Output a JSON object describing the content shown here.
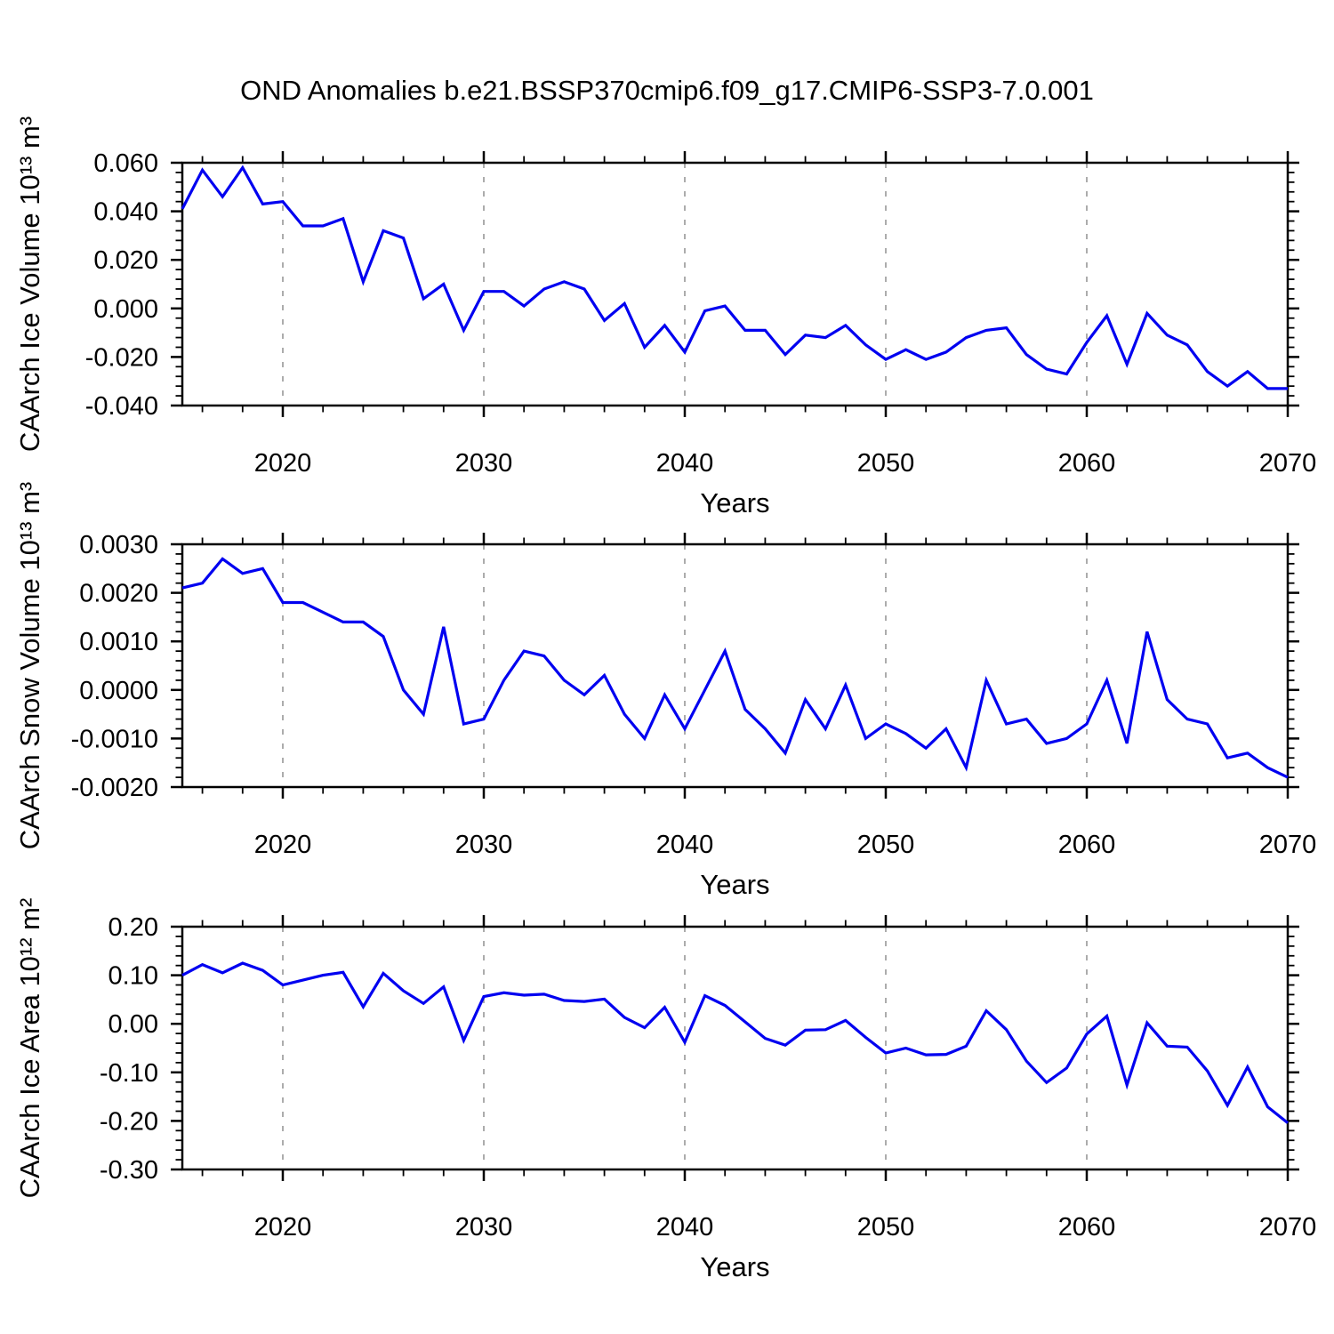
{
  "title": "OND Anomalies b.e21.BSSP370cmip6.f09_g17.CMIP6-SSP3-7.0.001",
  "colors": {
    "line": "#0000f0",
    "grid": "#909090",
    "frame": "#000000",
    "text": "#000000"
  },
  "chart_data": [
    {
      "type": "line",
      "name": "CAArch Ice Volume anomalies",
      "ylabel": "CAArch Ice Volume 10¹³ m³",
      "xlabel": "Years",
      "x_start": 2015,
      "x_end": 2070,
      "ylim": [
        -0.04,
        0.06
      ],
      "grid": "vertical-dashed-at-decades",
      "legend": "none",
      "yticks": {
        "values": [
          0.06,
          0.04,
          0.02,
          0.0,
          -0.02,
          -0.04
        ],
        "labels": [
          "0.060",
          "0.040",
          "0.020",
          "0.000",
          "-0.020",
          "-0.040"
        ]
      },
      "xticks": {
        "values": [
          2020,
          2030,
          2040,
          2050,
          2060,
          2070
        ],
        "labels": [
          "2020",
          "2030",
          "2040",
          "2050",
          "2060",
          "2070"
        ]
      },
      "values": [
        0.041,
        0.057,
        0.046,
        0.058,
        0.043,
        0.044,
        0.034,
        0.034,
        0.037,
        0.011,
        0.032,
        0.029,
        0.004,
        0.01,
        -0.009,
        0.007,
        0.007,
        0.001,
        0.008,
        0.011,
        0.008,
        -0.005,
        0.002,
        -0.016,
        -0.007,
        -0.018,
        -0.001,
        0.001,
        -0.009,
        -0.009,
        -0.019,
        -0.011,
        -0.012,
        -0.007,
        -0.015,
        -0.021,
        -0.017,
        -0.021,
        -0.018,
        -0.012,
        -0.009,
        -0.008,
        -0.019,
        -0.025,
        -0.027,
        -0.014,
        -0.003,
        -0.023,
        -0.002,
        -0.011,
        -0.015,
        -0.026,
        -0.032,
        -0.026,
        -0.033,
        -0.033
      ]
    },
    {
      "type": "line",
      "name": "CAArch Snow Volume anomalies",
      "ylabel": "CAArch Snow Volume 10¹³ m³",
      "xlabel": "Years",
      "x_start": 2015,
      "x_end": 2070,
      "ylim": [
        -0.002,
        0.003
      ],
      "grid": "vertical-dashed-at-decades",
      "legend": "none",
      "yticks": {
        "values": [
          0.003,
          0.002,
          0.001,
          0.0,
          -0.001,
          -0.002
        ],
        "labels": [
          "0.0030",
          "0.0020",
          "0.0010",
          "0.0000",
          "-0.0010",
          "-0.0020"
        ]
      },
      "xticks": {
        "values": [
          2020,
          2030,
          2040,
          2050,
          2060,
          2070
        ],
        "labels": [
          "2020",
          "2030",
          "2040",
          "2050",
          "2060",
          "2070"
        ]
      },
      "values": [
        0.0021,
        0.0022,
        0.0027,
        0.0024,
        0.0025,
        0.0018,
        0.0018,
        0.0016,
        0.0014,
        0.0014,
        0.0011,
        0.0,
        -0.0005,
        0.0013,
        -0.0007,
        -0.0006,
        0.0002,
        0.0008,
        0.0007,
        0.0002,
        -0.0001,
        0.0003,
        -0.0005,
        -0.001,
        -0.0001,
        -0.0008,
        0.0,
        0.0008,
        -0.0004,
        -0.0008,
        -0.0013,
        -0.0002,
        -0.0008,
        0.0001,
        -0.001,
        -0.0007,
        -0.0009,
        -0.0012,
        -0.0008,
        -0.0016,
        0.0002,
        -0.0007,
        -0.0006,
        -0.0011,
        -0.001,
        -0.0007,
        0.0002,
        -0.0011,
        0.0012,
        -0.0002,
        -0.0006,
        -0.0007,
        -0.0014,
        -0.0013,
        -0.0016,
        -0.0018
      ]
    },
    {
      "type": "line",
      "name": "CAArch Ice Area anomalies",
      "ylabel": "CAArch Ice Area 10¹² m²",
      "xlabel": "Years",
      "x_start": 2015,
      "x_end": 2070,
      "ylim": [
        -0.3,
        0.2
      ],
      "grid": "vertical-dashed-at-decades",
      "legend": "none",
      "yticks": {
        "values": [
          0.2,
          0.1,
          0.0,
          -0.1,
          -0.2,
          -0.3
        ],
        "labels": [
          "0.20",
          "0.10",
          "0.00",
          "-0.10",
          "-0.20",
          "-0.30"
        ]
      },
      "xticks": {
        "values": [
          2020,
          2030,
          2040,
          2050,
          2060,
          2070
        ],
        "labels": [
          "2020",
          "2030",
          "2040",
          "2050",
          "2060",
          "2070"
        ]
      },
      "values": [
        0.1,
        0.122,
        0.105,
        0.125,
        0.11,
        0.08,
        0.09,
        0.1,
        0.106,
        0.035,
        0.104,
        0.068,
        0.042,
        0.076,
        -0.034,
        0.056,
        0.064,
        0.059,
        0.061,
        0.048,
        0.046,
        0.051,
        0.013,
        -0.008,
        0.034,
        -0.038,
        0.058,
        0.038,
        0.004,
        -0.03,
        -0.044,
        -0.013,
        -0.012,
        0.007,
        -0.028,
        -0.06,
        -0.05,
        -0.064,
        -0.063,
        -0.046,
        0.027,
        -0.012,
        -0.077,
        -0.121,
        -0.091,
        -0.021,
        0.016,
        -0.126,
        0.002,
        -0.046,
        -0.048,
        -0.097,
        -0.168,
        -0.089,
        -0.171,
        -0.204
      ]
    }
  ]
}
